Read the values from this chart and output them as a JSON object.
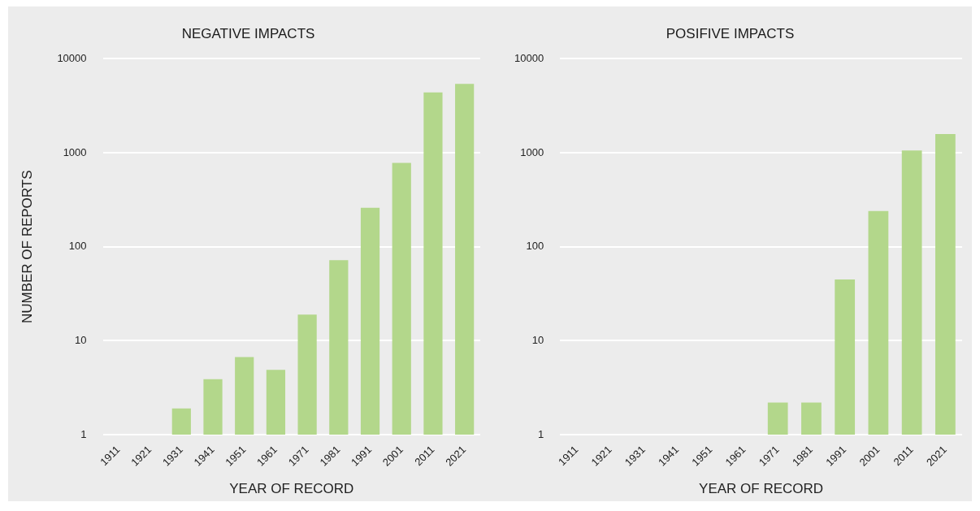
{
  "chart_data": [
    {
      "type": "bar",
      "title": "NEGATIVE IMPACTS",
      "xlabel": "YEAR OF RECORD",
      "ylabel": "NUMBER OF REPORTS",
      "categories": [
        "1911",
        "1921",
        "1931",
        "1941",
        "1951",
        "1961",
        "1971",
        "1981",
        "1991",
        "2001",
        "2011",
        "2021"
      ],
      "values": [
        null,
        null,
        1.9,
        3.9,
        6.7,
        4.9,
        19,
        72,
        260,
        780,
        4400,
        5400
      ],
      "color": "#b3d78b",
      "log": "y",
      "ylim": [
        1,
        10000
      ],
      "yticks": [
        1,
        10,
        100,
        1000,
        10000
      ],
      "grid": "y"
    },
    {
      "type": "bar",
      "title": "POSIFIVE IMPACTS",
      "xlabel": "YEAR OF RECORD",
      "categories": [
        "1911",
        "1921",
        "1931",
        "1941",
        "1951",
        "1961",
        "1971",
        "1981",
        "1991",
        "2001",
        "2011",
        "2021"
      ],
      "values": [
        null,
        null,
        null,
        null,
        null,
        null,
        2.2,
        2.2,
        45,
        240,
        1060,
        1580
      ],
      "color": "#b3d78b",
      "log": "y",
      "ylim": [
        1,
        10000
      ],
      "yticks": [
        1,
        10,
        100,
        1000,
        10000
      ],
      "grid": "y"
    }
  ]
}
